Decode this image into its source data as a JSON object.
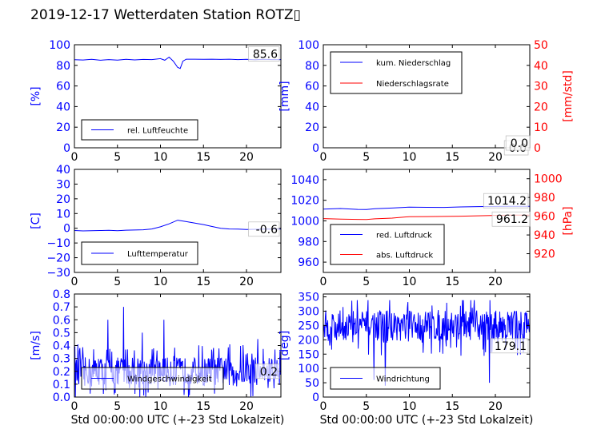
{
  "title": "2019-12-17 Wetterdaten Station ROTZ▯",
  "colors": {
    "blue": "#0000ff",
    "red": "#ff0000",
    "black": "#000000"
  },
  "chart_data": [
    {
      "id": "humidity",
      "type": "line",
      "xlim": [
        0,
        24
      ],
      "xticks": [
        "0",
        "5",
        "10",
        "15",
        "20"
      ],
      "ylim": [
        0,
        100
      ],
      "yticks": [
        "0",
        "20",
        "40",
        "60",
        "80",
        "100"
      ],
      "ylabel": "[%]",
      "series": [
        {
          "name": "rel. Luftfeuchte",
          "color": "#0000ff",
          "x": [
            0,
            1,
            2,
            3,
            4,
            5,
            6,
            7,
            8,
            9,
            10,
            10.5,
            11,
            11.5,
            12,
            12.3,
            12.6,
            13,
            14,
            15,
            16,
            17,
            18,
            19,
            20,
            21,
            22,
            23,
            24
          ],
          "values": [
            85.5,
            85.2,
            85.8,
            85.0,
            85.6,
            85.1,
            85.9,
            85.3,
            85.7,
            85.6,
            86.5,
            85,
            88,
            84,
            78,
            77,
            84,
            86,
            86,
            85.8,
            86,
            85.7,
            86,
            85.6,
            85.9,
            85.4,
            85.8,
            85.6,
            85.6
          ]
        }
      ],
      "value_label": "85.6",
      "legend_pos": "lower-left"
    },
    {
      "id": "precip",
      "type": "line",
      "xlim": [
        0,
        24
      ],
      "xticks": [
        "0",
        "5",
        "10",
        "15",
        "20"
      ],
      "ylim": [
        0,
        100
      ],
      "yticks": [
        "0",
        "20",
        "40",
        "60",
        "80",
        "100"
      ],
      "ylabel": "[mm]",
      "ylim2": [
        0,
        50
      ],
      "yticks2": [
        "0",
        "10",
        "20",
        "30",
        "40",
        "50"
      ],
      "ylabel2": "[mm/std]",
      "series": [
        {
          "name": "kum. Niederschlag",
          "color": "#0000ff",
          "axis": "left",
          "x": [
            0,
            24
          ],
          "values": [
            0,
            0
          ]
        },
        {
          "name": "Niederschlagsrate",
          "color": "#ff0000",
          "axis": "right",
          "x": [
            0,
            24
          ],
          "values": [
            0,
            0
          ]
        }
      ],
      "value_label": "0.0",
      "value_label2": "0.0",
      "legend_pos": "upper-left"
    },
    {
      "id": "temperature",
      "type": "line",
      "xlim": [
        0,
        24
      ],
      "xticks": [
        "0",
        "5",
        "10",
        "15",
        "20"
      ],
      "ylim": [
        -30,
        40
      ],
      "yticks": [
        "−30",
        "−20",
        "−10",
        "0",
        "10",
        "20",
        "30",
        "40"
      ],
      "ylabel": "[C]",
      "series": [
        {
          "name": "Lufttemperatur",
          "color": "#0000ff",
          "x": [
            0,
            1,
            2,
            3,
            4,
            5,
            6,
            7,
            8,
            9,
            10,
            11,
            12,
            13,
            14,
            15,
            16,
            17,
            18,
            19,
            20,
            21,
            22,
            23,
            24
          ],
          "values": [
            -1.5,
            -1.8,
            -1.6,
            -1.5,
            -1.4,
            -1.6,
            -1.3,
            -1.2,
            -1.0,
            -0.5,
            1.0,
            3.0,
            5.5,
            4.5,
            3.5,
            2.5,
            1.2,
            0,
            -0.5,
            -0.6,
            -0.8,
            -0.7,
            -0.6,
            -0.6,
            -0.6
          ]
        }
      ],
      "value_label": "-0.6",
      "legend_pos": "lower-left"
    },
    {
      "id": "pressure",
      "type": "line",
      "xlim": [
        0,
        24
      ],
      "xticks": [
        "0",
        "5",
        "10",
        "15",
        "20"
      ],
      "ylim": [
        950,
        1050
      ],
      "yticks": [
        "960",
        "980",
        "1000",
        "1020",
        "1040"
      ],
      "ylim2": [
        900,
        1010
      ],
      "yticks2": [
        "920",
        "940",
        "960",
        "980",
        "1000"
      ],
      "ylabel2": "[hPa]",
      "series": [
        {
          "name": "red. Luftdruck",
          "color": "#0000ff",
          "axis": "left",
          "x": [
            0,
            2,
            4,
            5,
            6,
            8,
            10,
            12,
            14,
            16,
            18,
            20,
            22,
            24
          ],
          "values": [
            1011.5,
            1012,
            1011.2,
            1011,
            1011.8,
            1012.5,
            1013.4,
            1013.2,
            1013.1,
            1013.6,
            1013.9,
            1014.0,
            1014.2,
            1014.2
          ]
        },
        {
          "name": "abs. Luftdruck",
          "color": "#ff0000",
          "axis": "right",
          "x": [
            0,
            2,
            4,
            5,
            6,
            8,
            10,
            12,
            14,
            16,
            18,
            20,
            22,
            24
          ],
          "values": [
            957.5,
            957.0,
            956.6,
            956.5,
            957.2,
            958.0,
            959.5,
            959.6,
            959.8,
            960.0,
            960.5,
            960.9,
            961.2,
            961.2
          ]
        }
      ],
      "value_label": "1014.2",
      "value_label2": "961.2",
      "legend_pos": "lower-left"
    },
    {
      "id": "wind_speed",
      "type": "line",
      "xlim": [
        0,
        24
      ],
      "xticks": [
        "0",
        "5",
        "10",
        "15",
        "20"
      ],
      "xlabel": "Std 00:00:00 UTC (+-23 Std Lokalzeit)",
      "ylim": [
        0,
        0.8
      ],
      "yticks": [
        "0.0",
        "0.1",
        "0.2",
        "0.3",
        "0.4",
        "0.5",
        "0.6",
        "0.7",
        "0.8"
      ],
      "ylabel": "[m/s]",
      "series": [
        {
          "name": "Windgeschwindigkeit",
          "color": "#0000ff",
          "generated": "noisy",
          "base": 0.2,
          "spread": 0.18,
          "spikes": [
            [
              5.7,
              0.7
            ],
            [
              3.9,
              0.6
            ],
            [
              10.4,
              0.6
            ],
            [
              7.9,
              0.5
            ],
            [
              21.3,
              0.45
            ]
          ]
        }
      ],
      "value_label": "0.2",
      "legend_pos": "lower-center"
    },
    {
      "id": "wind_dir",
      "type": "line",
      "xlim": [
        0,
        24
      ],
      "xticks": [
        "0",
        "5",
        "10",
        "15",
        "20"
      ],
      "xlabel": "Std 00:00:00 UTC (+-23 Std Lokalzeit)",
      "ylim": [
        0,
        360
      ],
      "yticks": [
        "0",
        "50",
        "100",
        "150",
        "200",
        "250",
        "300",
        "350"
      ],
      "ylabel": "[deg]",
      "series": [
        {
          "name": "Windrichtung",
          "color": "#0000ff",
          "generated": "noisy",
          "base": 250,
          "spread": 90,
          "spikes": [
            [
              7.2,
              40
            ],
            [
              5.9,
              60
            ],
            [
              19.3,
              50
            ]
          ]
        }
      ],
      "value_label": "179.1",
      "legend_pos": "lower-left"
    }
  ]
}
